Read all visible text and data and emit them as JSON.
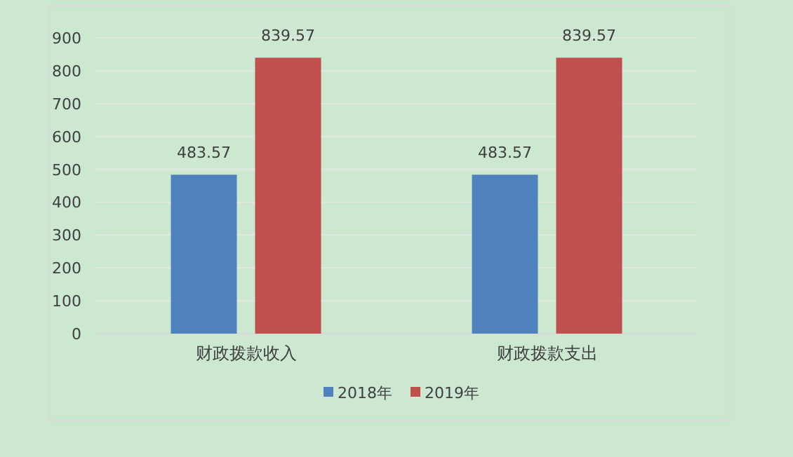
{
  "chart_data": {
    "type": "bar",
    "categories": [
      "财政拨款收入",
      "财政拨款支出"
    ],
    "series": [
      {
        "name": "2018年",
        "color": "#4f81bd",
        "values": [
          483.57,
          483.57
        ]
      },
      {
        "name": "2019年",
        "color": "#c0504d",
        "values": [
          839.57,
          839.57
        ]
      }
    ],
    "ylim": [
      0,
      900
    ],
    "yticks": [
      0,
      100,
      200,
      300,
      400,
      500,
      600,
      700,
      800,
      900
    ],
    "grid": "y",
    "legend": "bottom",
    "data_labels": true
  }
}
